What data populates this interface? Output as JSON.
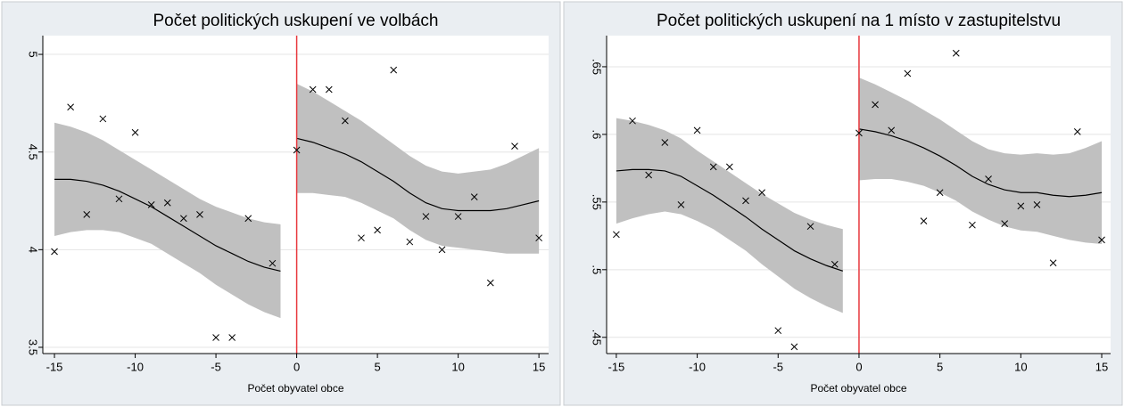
{
  "chart_data": [
    {
      "type": "scatter",
      "title": "Počet politických uskupení ve volbách",
      "xlabel": "Počet obyvatel obce",
      "xlim": [
        -15.72,
        15.6
      ],
      "xticks": [
        -15,
        -10,
        -5,
        0,
        5,
        10,
        15
      ],
      "ylim": [
        3.468,
        5.096
      ],
      "yticks": [
        3.5,
        4,
        4.5,
        5
      ],
      "grid": true,
      "vline": 0,
      "vline_color": "#e8383d",
      "series": [
        {
          "color": "#000000",
          "x": [
            -15,
            -14,
            -13,
            -12,
            -11,
            -10,
            -9,
            -8,
            -7,
            -6,
            -5,
            -4,
            -3,
            -1.5,
            0,
            1,
            2,
            3,
            4,
            5,
            6,
            7,
            8,
            9,
            10,
            11,
            12,
            13.5,
            15
          ],
          "values": [
            3.99,
            4.73,
            4.18,
            4.67,
            4.26,
            4.6,
            4.23,
            4.24,
            4.16,
            4.18,
            3.55,
            3.55,
            4.16,
            3.93,
            4.51,
            4.82,
            4.82,
            4.66,
            4.06,
            4.1,
            4.92,
            4.04,
            4.17,
            4.0,
            4.17,
            4.27,
            3.83,
            4.53,
            4.06
          ]
        },
        {
          "color": "#000000",
          "band_color": "#c0c0c0",
          "x": [
            -15,
            -14,
            -13,
            -12,
            -11,
            -10,
            -9,
            -8,
            -7,
            -6,
            -5,
            -4,
            -3,
            -2,
            -1
          ],
          "values": [
            4.36,
            4.36,
            4.35,
            4.33,
            4.3,
            4.26,
            4.22,
            4.17,
            4.12,
            4.07,
            4.02,
            3.98,
            3.94,
            3.91,
            3.89
          ],
          "upper": [
            4.65,
            4.63,
            4.6,
            4.56,
            4.51,
            4.46,
            4.41,
            4.36,
            4.31,
            4.26,
            4.22,
            4.19,
            4.16,
            4.14,
            4.13
          ],
          "lower": [
            4.07,
            4.09,
            4.1,
            4.1,
            4.09,
            4.06,
            4.03,
            3.98,
            3.93,
            3.88,
            3.82,
            3.77,
            3.72,
            3.68,
            3.65
          ]
        },
        {
          "color": "#000000",
          "band_color": "#c0c0c0",
          "x": [
            0,
            1,
            2,
            3,
            4,
            5,
            6,
            7,
            8,
            9,
            10,
            11,
            12,
            13,
            14,
            15
          ],
          "values": [
            4.57,
            4.55,
            4.52,
            4.49,
            4.45,
            4.4,
            4.35,
            4.29,
            4.24,
            4.21,
            4.2,
            4.2,
            4.2,
            4.21,
            4.23,
            4.25
          ],
          "upper": [
            4.85,
            4.81,
            4.76,
            4.71,
            4.66,
            4.6,
            4.54,
            4.48,
            4.43,
            4.4,
            4.39,
            4.4,
            4.41,
            4.44,
            4.48,
            4.52
          ],
          "lower": [
            4.29,
            4.29,
            4.28,
            4.27,
            4.24,
            4.2,
            4.16,
            4.1,
            4.05,
            4.02,
            4.01,
            4.0,
            3.99,
            3.98,
            3.98,
            3.98
          ]
        }
      ]
    },
    {
      "type": "scatter",
      "title": "Počet politických uskupení na 1 místo v zastupitelstvu",
      "xlabel": "Počet obyvatel obce",
      "xlim": [
        -15.6,
        15.55
      ],
      "xticks": [
        -15,
        -10,
        -5,
        0,
        5,
        10,
        15
      ],
      "ylim": [
        0.438,
        0.673
      ],
      "yticks": [
        {
          "value": 0.45,
          "label": ".45"
        },
        {
          "value": 0.5,
          "label": ".5"
        },
        {
          "value": 0.55,
          "label": ".55"
        },
        {
          "value": 0.6,
          "label": ".6"
        },
        {
          "value": 0.65,
          "label": ".65"
        }
      ],
      "grid": true,
      "vline": 0,
      "vline_color": "#e8383d",
      "series": [
        {
          "color": "#000000",
          "x": [
            -15,
            -14,
            -13,
            -12,
            -11,
            -10,
            -9,
            -8,
            -7,
            -6,
            -5,
            -4,
            -3,
            -1.5,
            0,
            1,
            2,
            3,
            4,
            5,
            6,
            7,
            8,
            9,
            10,
            11,
            12,
            13.5,
            15
          ],
          "values": [
            0.526,
            0.61,
            0.57,
            0.594,
            0.548,
            0.603,
            0.576,
            0.576,
            0.551,
            0.557,
            0.455,
            0.443,
            0.532,
            0.504,
            0.601,
            0.622,
            0.603,
            0.645,
            0.536,
            0.557,
            0.66,
            0.533,
            0.567,
            0.534,
            0.547,
            0.548,
            0.505,
            0.602,
            0.522
          ]
        },
        {
          "color": "#000000",
          "band_color": "#c0c0c0",
          "x": [
            -15,
            -14,
            -13,
            -12,
            -11,
            -10,
            -9,
            -8,
            -7,
            -6,
            -5,
            -4,
            -3,
            -2,
            -1
          ],
          "values": [
            0.573,
            0.574,
            0.574,
            0.573,
            0.569,
            0.562,
            0.555,
            0.547,
            0.539,
            0.53,
            0.522,
            0.514,
            0.508,
            0.503,
            0.499
          ],
          "upper": [
            0.612,
            0.61,
            0.607,
            0.603,
            0.597,
            0.588,
            0.58,
            0.572,
            0.564,
            0.556,
            0.549,
            0.542,
            0.537,
            0.533,
            0.53
          ],
          "lower": [
            0.534,
            0.538,
            0.541,
            0.543,
            0.541,
            0.536,
            0.53,
            0.522,
            0.514,
            0.504,
            0.495,
            0.486,
            0.479,
            0.473,
            0.468
          ]
        },
        {
          "color": "#000000",
          "band_color": "#c0c0c0",
          "x": [
            0,
            1,
            2,
            3,
            4,
            5,
            6,
            7,
            8,
            9,
            10,
            11,
            12,
            13,
            14,
            15
          ],
          "values": [
            0.604,
            0.602,
            0.599,
            0.595,
            0.59,
            0.584,
            0.577,
            0.569,
            0.563,
            0.559,
            0.557,
            0.557,
            0.555,
            0.554,
            0.555,
            0.557
          ],
          "upper": [
            0.642,
            0.637,
            0.631,
            0.625,
            0.618,
            0.611,
            0.603,
            0.595,
            0.589,
            0.586,
            0.585,
            0.586,
            0.585,
            0.586,
            0.59,
            0.595
          ],
          "lower": [
            0.566,
            0.567,
            0.567,
            0.565,
            0.562,
            0.557,
            0.551,
            0.543,
            0.537,
            0.532,
            0.529,
            0.528,
            0.525,
            0.522,
            0.52,
            0.519
          ]
        }
      ]
    }
  ]
}
